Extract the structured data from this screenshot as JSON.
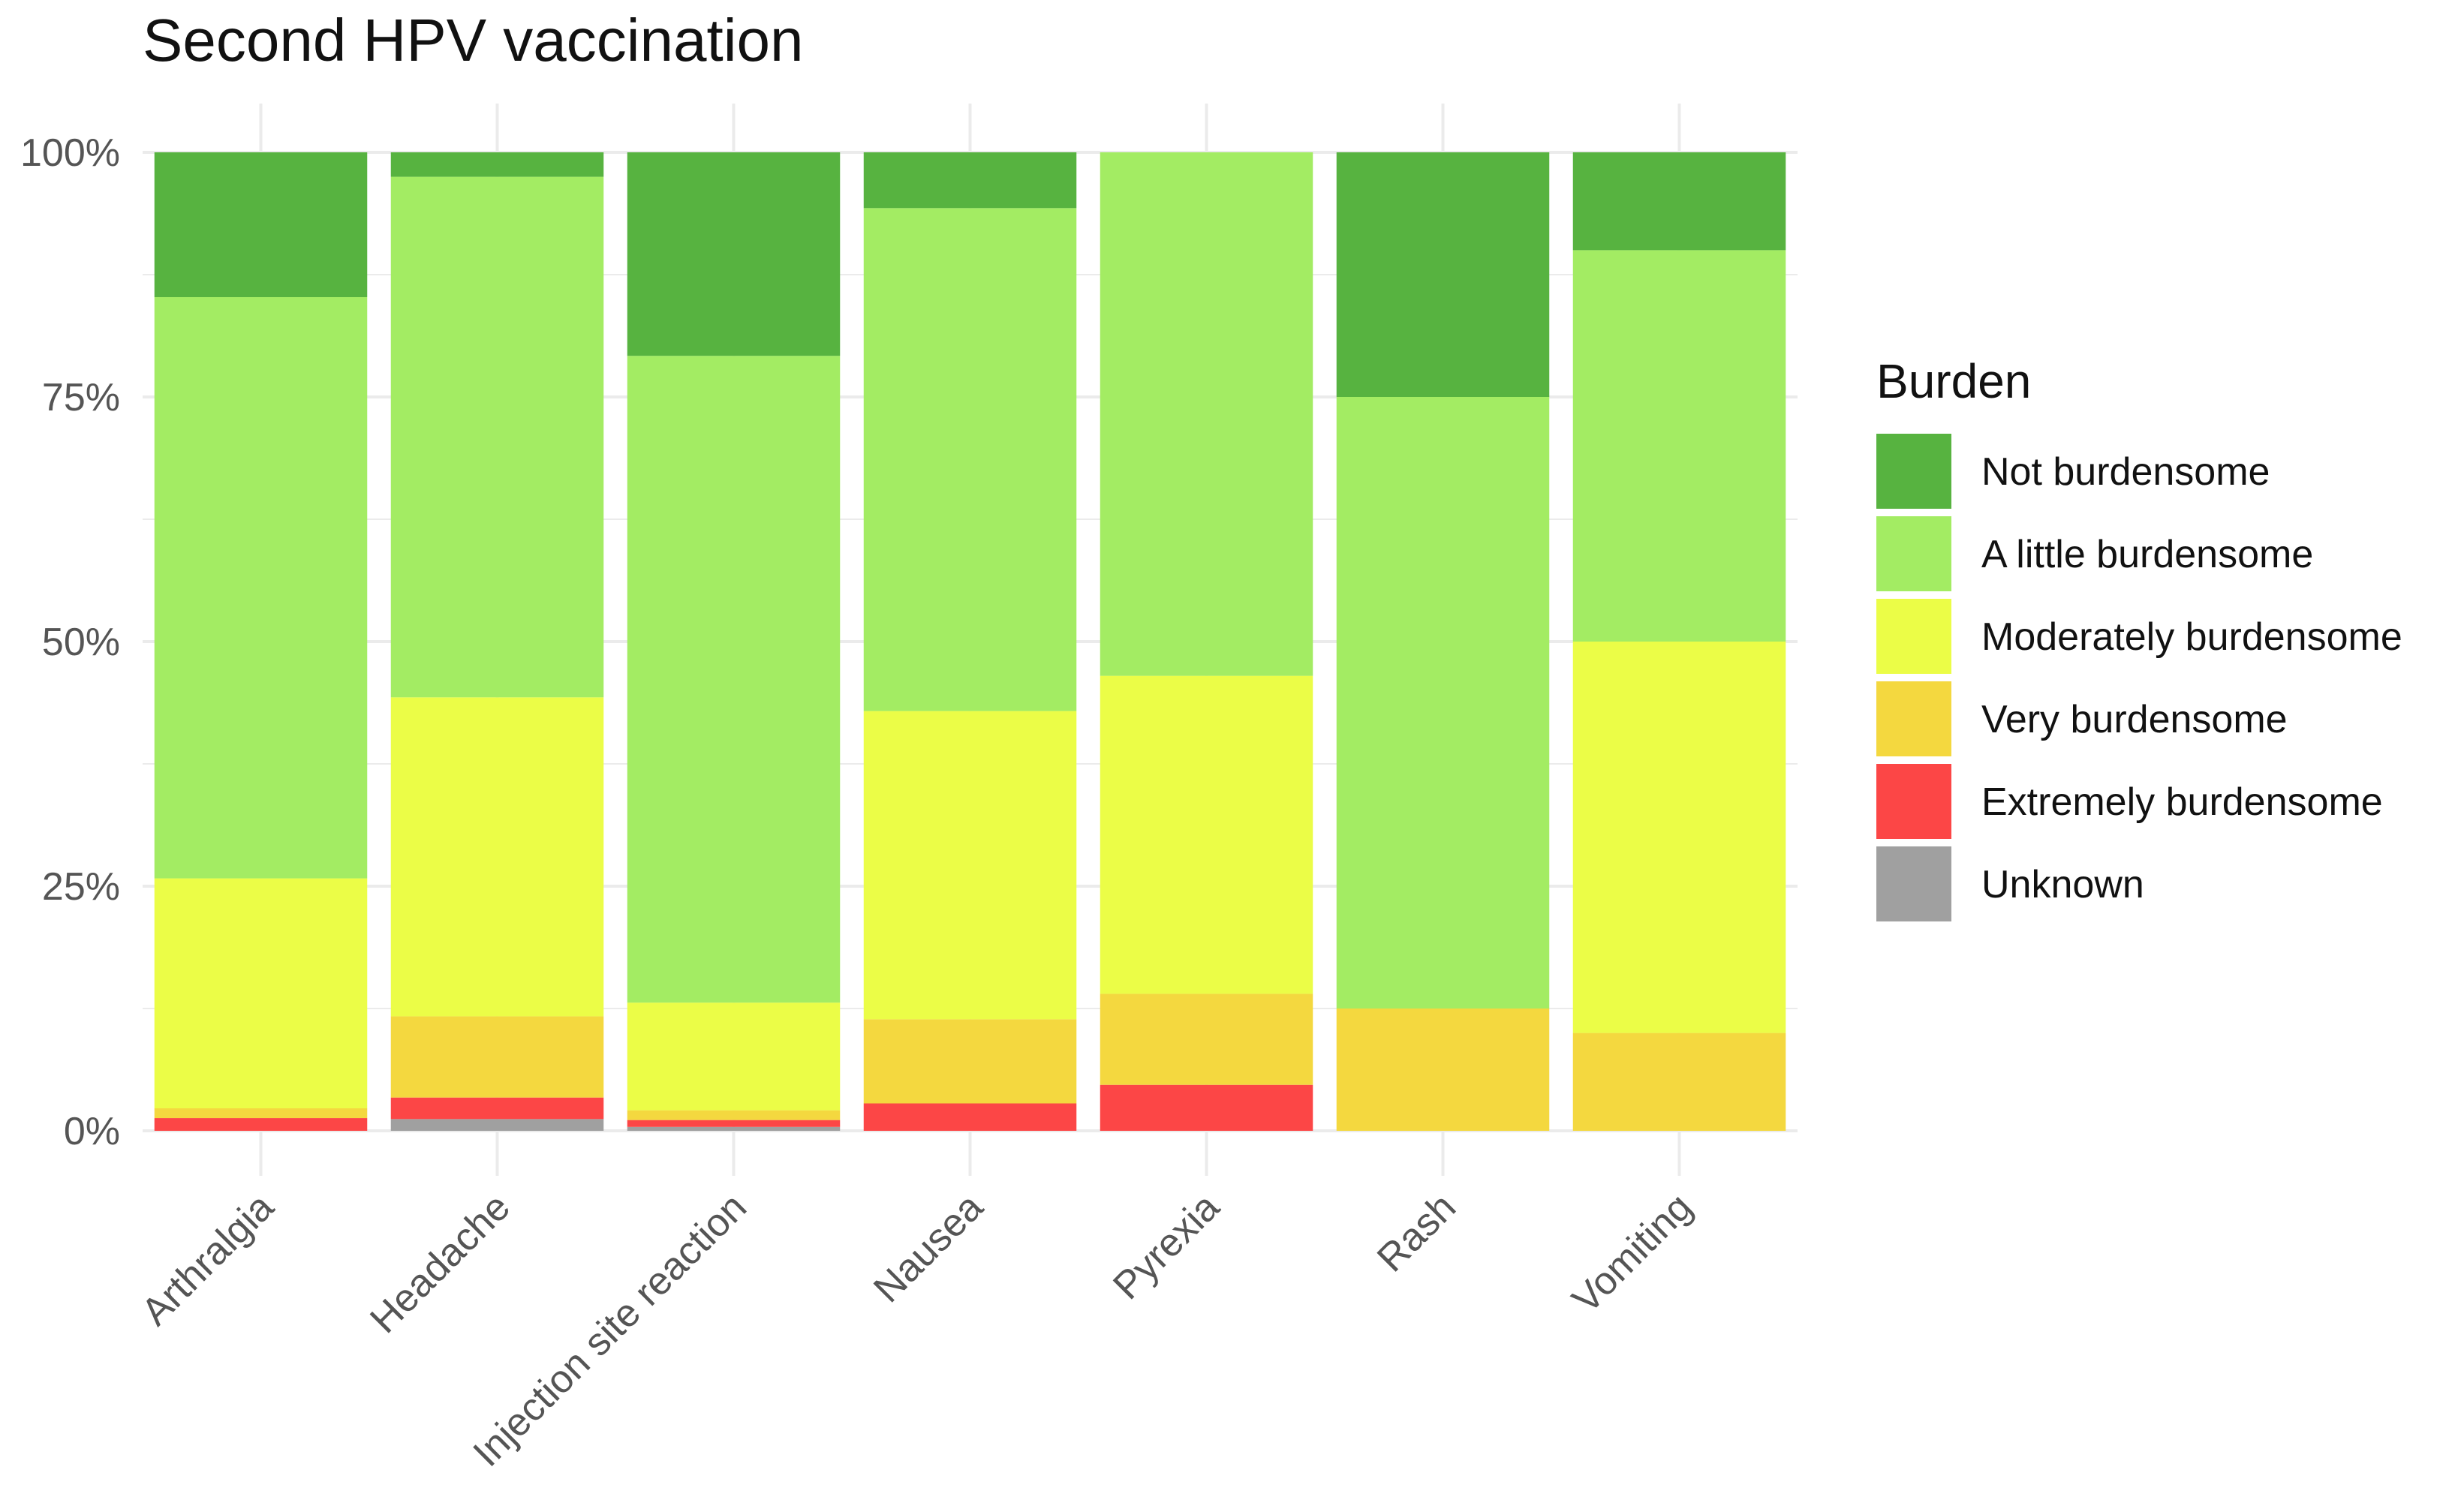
{
  "chart_data": {
    "type": "bar",
    "stacked": true,
    "title": "Second HPV vaccination",
    "xlabel": "",
    "ylabel": "",
    "ylim": [
      0,
      1
    ],
    "y_ticks": [
      "0%",
      "25%",
      "50%",
      "75%",
      "100%"
    ],
    "categories": [
      "Arthralgia",
      "Headache",
      "Injection site reaction",
      "Nausea",
      "Pyrexia",
      "Rash",
      "Vomiting"
    ],
    "legend": {
      "title": "Burden",
      "position": "right"
    },
    "series": [
      {
        "name": "Unknown",
        "color": "#a0a0a0",
        "values": [
          0.0,
          0.012,
          0.004,
          0.0,
          0.0,
          0.0,
          0.0
        ]
      },
      {
        "name": "Extremely burdensome",
        "color": "#fc4646",
        "values": [
          0.013,
          0.022,
          0.007,
          0.028,
          0.047,
          0.0,
          0.0
        ]
      },
      {
        "name": "Very burdensome",
        "color": "#f4d83f",
        "values": [
          0.01,
          0.083,
          0.01,
          0.086,
          0.093,
          0.125,
          0.1
        ]
      },
      {
        "name": "Moderately burdensome",
        "color": "#ebfd47",
        "values": [
          0.235,
          0.326,
          0.11,
          0.315,
          0.325,
          0.0,
          0.4
        ]
      },
      {
        "name": "A little burdensome",
        "color": "#a3ec63",
        "values": [
          0.594,
          0.532,
          0.661,
          0.514,
          0.535,
          0.625,
          0.4
        ]
      },
      {
        "name": "Not burdensome",
        "color": "#57b340",
        "values": [
          0.148,
          0.025,
          0.208,
          0.057,
          0.0,
          0.25,
          0.1
        ]
      }
    ],
    "legend_order": [
      "Not burdensome",
      "A little burdensome",
      "Moderately burdensome",
      "Very burdensome",
      "Extremely burdensome",
      "Unknown"
    ]
  }
}
